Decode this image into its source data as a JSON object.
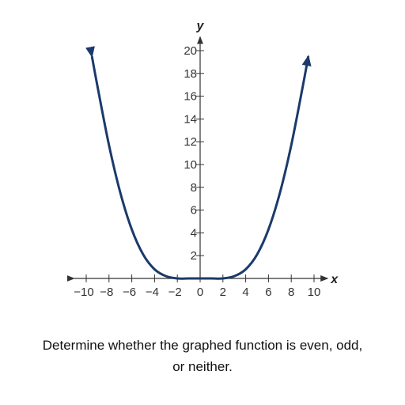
{
  "chart_data": {
    "type": "line",
    "xlabel": "x",
    "ylabel": "y",
    "xlim": [
      -10.5,
      10.5
    ],
    "ylim": [
      0,
      21
    ],
    "x_ticks": [
      -10,
      -8,
      -6,
      -4,
      -2,
      0,
      2,
      4,
      6,
      8,
      10
    ],
    "x_tick_labels": [
      "−10",
      "−8",
      "−6",
      "−4",
      "−2",
      "0",
      "2",
      "4",
      "6",
      "8",
      "10"
    ],
    "y_ticks": [
      2,
      4,
      6,
      8,
      10,
      12,
      14,
      16,
      18,
      20
    ],
    "y_tick_labels": [
      "2",
      "4",
      "6",
      "8",
      "10",
      "12",
      "14",
      "16",
      "18",
      "20"
    ],
    "grid": false,
    "line_color": "#1b3a6b",
    "axis_color": "#333333",
    "series": [
      {
        "x": [
          -9.5,
          -9,
          -8,
          -7,
          -6,
          -5,
          -4,
          -3,
          -2,
          -1,
          0,
          1,
          2,
          3,
          4,
          5,
          6,
          7,
          8,
          9,
          9.5
        ],
        "values": [
          19.5,
          16.8,
          11.7,
          7.5,
          4.3,
          2.1,
          0.8,
          0.2,
          0,
          0,
          0,
          0,
          0,
          0.2,
          0.8,
          2.1,
          4.3,
          7.5,
          11.7,
          16.8,
          19.5
        ]
      }
    ]
  },
  "caption": {
    "line1": "Determine whether the graphed function is even, odd,",
    "line2": "or neither."
  }
}
